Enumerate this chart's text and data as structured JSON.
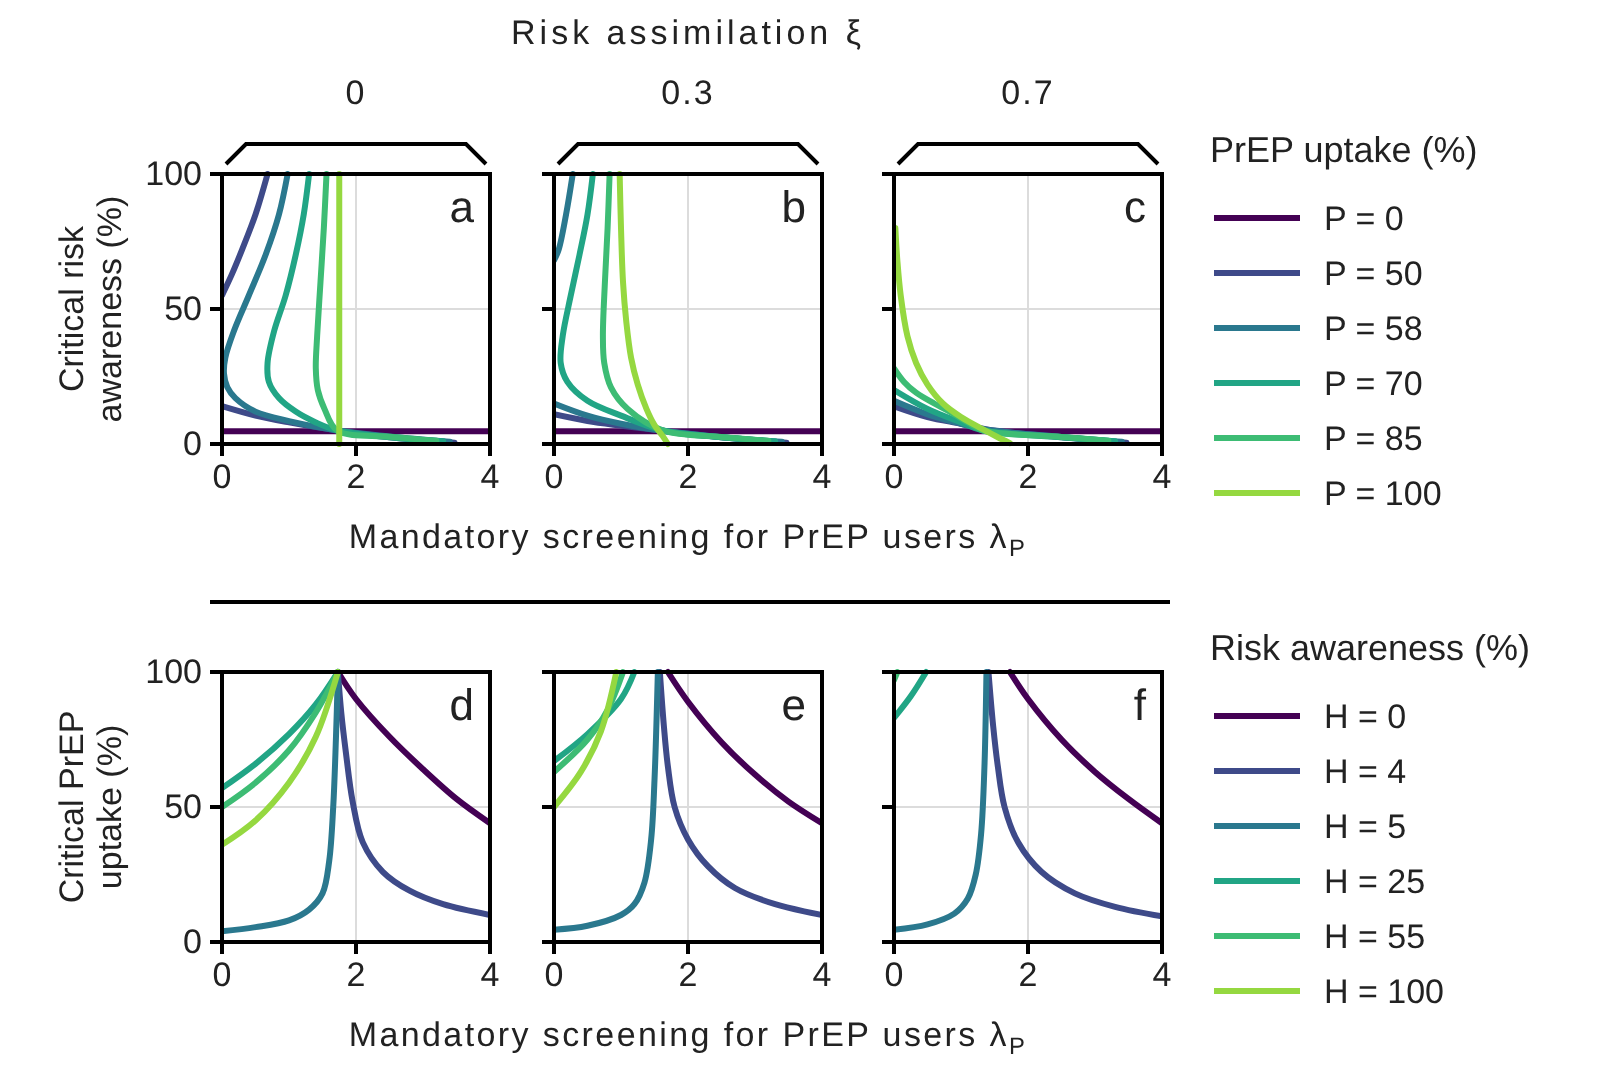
{
  "chart_data": [
    {
      "type": "line",
      "ylabel": "Critical risk awareness (%)",
      "subtitle": "0",
      "annotations": [
        "a"
      ],
      "xlim": [
        0,
        4
      ],
      "ylim": [
        0,
        100
      ],
      "xticks": [
        0,
        2,
        4
      ],
      "yticks": [
        0,
        50,
        100
      ],
      "grid": true,
      "series": [
        {
          "color": "#440154",
          "x": [
            0,
            4
          ],
          "values": [
            4.7,
            4.7
          ]
        },
        {
          "color": "#3e4a89",
          "x": [
            0.68,
            0.5,
            0.3,
            0.15,
            0,
            null,
            0,
            0.5,
            1,
            1.72,
            2.5,
            3.47
          ],
          "values": [
            100,
            85,
            72,
            63,
            55,
            null,
            14,
            10.5,
            8,
            5,
            2.5,
            0.5
          ]
        },
        {
          "color": "#2a788e",
          "x": [
            0.98,
            0.85,
            0.65,
            0.4,
            0.18,
            0.05,
            0.03,
            0.08,
            0.2,
            0.5,
            1,
            1.72,
            2.5,
            3.4
          ],
          "values": [
            100,
            85,
            70,
            55,
            42,
            32,
            26,
            21,
            17,
            12,
            8.5,
            5,
            2.8,
            0.8
          ]
        },
        {
          "color": "#21a585",
          "x": [
            1.3,
            1.22,
            1.1,
            0.95,
            0.78,
            0.68,
            0.7,
            0.85,
            1.1,
            1.4,
            1.72,
            2.5,
            3.3
          ],
          "values": [
            100,
            85,
            70,
            55,
            42,
            30,
            23,
            17,
            12,
            8,
            5,
            2.5,
            1
          ]
        },
        {
          "color": "#3dbc74",
          "x": [
            1.56,
            1.52,
            1.47,
            1.42,
            1.4,
            1.43,
            1.53,
            1.72,
            2.5,
            3.2
          ],
          "values": [
            100,
            80,
            60,
            40,
            28,
            20,
            13,
            5,
            2.7,
            1.2
          ]
        },
        {
          "color": "#95d840",
          "x": [
            1.75,
            1.75
          ],
          "values": [
            100,
            0
          ]
        }
      ]
    },
    {
      "type": "line",
      "title": "Risk assimilation ξ",
      "subtitle": "0.3",
      "xlabel": "Mandatory screening for PrEP users λ$_{P}$",
      "annotations": [
        "b"
      ],
      "xlim": [
        0,
        4
      ],
      "ylim": [
        0,
        100
      ],
      "xticks": [
        0,
        2,
        4
      ],
      "yticks": [
        0,
        50,
        100
      ],
      "grid": true,
      "tick_labels": "x",
      "series": [
        {
          "color": "#440154",
          "x": [
            0,
            4
          ],
          "values": [
            4.7,
            4.7
          ]
        },
        {
          "color": "#3e4a89",
          "x": [
            0,
            0.5,
            1,
            1.6,
            2.5,
            3.47
          ],
          "values": [
            11,
            8.5,
            6.8,
            5,
            2.5,
            0.5
          ]
        },
        {
          "color": "#2a788e",
          "x": [
            0.28,
            0.18,
            0.07,
            0,
            null,
            0,
            0.5,
            1,
            1.6,
            2.5,
            3.4
          ],
          "values": [
            100,
            85,
            72,
            68,
            null,
            15,
            10.5,
            7.5,
            5,
            2.5,
            0.8
          ]
        },
        {
          "color": "#21a585",
          "x": [
            0.58,
            0.5,
            0.38,
            0.25,
            0.13,
            0.1,
            0.2,
            0.5,
            1,
            1.63,
            2.5,
            3.3
          ],
          "values": [
            100,
            85,
            70,
            55,
            40,
            30,
            23,
            16,
            10.5,
            5,
            2.5,
            1
          ]
        },
        {
          "color": "#3dbc74",
          "x": [
            0.83,
            0.8,
            0.76,
            0.73,
            0.75,
            0.85,
            1.1,
            1.63,
            2.5,
            3.2
          ],
          "values": [
            100,
            80,
            60,
            40,
            30,
            21,
            13,
            5,
            2.6,
            1.2
          ]
        },
        {
          "color": "#95d840",
          "x": [
            0.98,
            1,
            1.03,
            1.08,
            1.15,
            1.25,
            1.38,
            1.5,
            1.62,
            1.7
          ],
          "values": [
            100,
            80,
            60,
            45,
            32,
            22,
            13,
            7,
            3,
            0
          ]
        }
      ]
    },
    {
      "type": "line",
      "subtitle": "0.7",
      "legend_title": "PrEP uptake (%)",
      "legend": "right",
      "annotations": [
        "c"
      ],
      "xlim": [
        0,
        4
      ],
      "ylim": [
        0,
        100
      ],
      "xticks": [
        0,
        2,
        4
      ],
      "yticks": [
        0,
        50,
        100
      ],
      "grid": true,
      "tick_labels": "x",
      "series": [
        {
          "name": "P = 0",
          "color": "#440154",
          "x": [
            0,
            4
          ],
          "values": [
            4.7,
            4.7
          ]
        },
        {
          "name": "P = 50",
          "color": "#3e4a89",
          "x": [
            0,
            0.5,
            1,
            1.5,
            2.5,
            3.47
          ],
          "values": [
            14,
            10,
            7.5,
            5,
            2.5,
            0.5
          ]
        },
        {
          "name": "P = 58",
          "color": "#2a788e",
          "x": [
            0,
            0.5,
            1,
            1.33,
            2.5,
            3.4
          ],
          "values": [
            16,
            11,
            7.5,
            5.5,
            2.6,
            0.8
          ]
        },
        {
          "name": "P = 70",
          "color": "#21a585",
          "x": [
            0,
            0.5,
            1,
            1.33,
            2.5,
            3.3
          ],
          "values": [
            20,
            13,
            8,
            5,
            2.5,
            1
          ]
        },
        {
          "name": "P = 85",
          "color": "#3dbc74",
          "x": [
            0,
            0.15,
            0.33,
            0.6,
            0.83,
            1.1,
            1.33,
            2.5,
            3.2
          ],
          "values": [
            28,
            23,
            19,
            15,
            12,
            8,
            5,
            2.6,
            1.2
          ]
        },
        {
          "name": "P = 100",
          "color": "#95d840",
          "x": [
            0.02,
            0.05,
            0.1,
            0.2,
            0.33,
            0.5,
            0.73,
            1,
            1.33,
            1.55,
            1.73
          ],
          "values": [
            80,
            68,
            55,
            40,
            30,
            22,
            15,
            10,
            5.4,
            2.5,
            0.3
          ]
        }
      ]
    },
    {
      "type": "line",
      "ylabel": "Critical PrEP uptake (%)",
      "annotations": [
        "d"
      ],
      "xlim": [
        0,
        4
      ],
      "ylim": [
        0,
        100
      ],
      "xticks": [
        0,
        2,
        4
      ],
      "yticks": [
        0,
        50,
        100
      ],
      "grid": true,
      "series": [
        {
          "color": "#440154",
          "x": [
            1.73,
            2,
            2.5,
            3,
            3.5,
            4
          ],
          "values": [
            100,
            90,
            76,
            64,
            53,
            44
          ]
        },
        {
          "color": "#3e4a89",
          "x": [
            1.73,
            1.78,
            1.85,
            1.95,
            2.1,
            2.4,
            2.8,
            3.3,
            4
          ],
          "values": [
            100,
            85,
            70,
            52,
            37,
            26,
            19,
            14,
            10
          ]
        },
        {
          "color": "#2a788e",
          "x": [
            0,
            0.5,
            1,
            1.3,
            1.5,
            1.6,
            1.66,
            1.7,
            1.73
          ],
          "values": [
            4,
            5.5,
            8,
            12,
            18,
            30,
            50,
            75,
            100
          ]
        },
        {
          "color": "#21a585",
          "x": [
            0,
            0.5,
            1,
            1.4,
            1.73
          ],
          "values": [
            57,
            66,
            77,
            88,
            100
          ]
        },
        {
          "color": "#3dbc74",
          "x": [
            0,
            0.5,
            1,
            1.4,
            1.73
          ],
          "values": [
            50,
            59,
            71,
            85,
            100
          ]
        },
        {
          "color": "#95d840",
          "x": [
            0,
            0.5,
            1,
            1.4,
            1.73
          ],
          "values": [
            36,
            45,
            59,
            76,
            100
          ]
        }
      ]
    },
    {
      "type": "line",
      "xlabel": "Mandatory screening for PrEP users λ$_{P}$",
      "annotations": [
        "e"
      ],
      "xlim": [
        0,
        4
      ],
      "ylim": [
        0,
        100
      ],
      "xticks": [
        0,
        2,
        4
      ],
      "yticks": [
        0,
        50,
        100
      ],
      "grid": true,
      "tick_labels": "x",
      "series": [
        {
          "color": "#440154",
          "x": [
            1.7,
            2,
            2.5,
            3,
            3.5,
            4
          ],
          "values": [
            100,
            89,
            74,
            62,
            52,
            44
          ]
        },
        {
          "color": "#3e4a89",
          "x": [
            1.58,
            1.64,
            1.7,
            1.8,
            2,
            2.3,
            2.7,
            3.3,
            4
          ],
          "values": [
            100,
            80,
            65,
            50,
            38,
            28,
            20,
            14,
            10
          ]
        },
        {
          "color": "#2a788e",
          "x": [
            0,
            0.5,
            1,
            1.2,
            1.35,
            1.45,
            1.5,
            1.55
          ],
          "values": [
            4.5,
            6,
            10,
            14,
            22,
            38,
            60,
            100
          ]
        },
        {
          "color": "#21a585",
          "x": [
            0,
            0.5,
            1,
            1.2
          ],
          "values": [
            67,
            77,
            90,
            100
          ]
        },
        {
          "color": "#3dbc74",
          "x": [
            0,
            0.5,
            0.8,
            1.03
          ],
          "values": [
            63,
            75,
            86,
            100
          ]
        },
        {
          "color": "#95d840",
          "x": [
            0,
            0.4,
            0.7,
            0.93
          ],
          "values": [
            50,
            63,
            78,
            100
          ]
        }
      ]
    },
    {
      "type": "line",
      "legend_title": "Risk awareness (%)",
      "legend": "right",
      "annotations": [
        "f"
      ],
      "xlim": [
        0,
        4
      ],
      "ylim": [
        0,
        100
      ],
      "xticks": [
        0,
        2,
        4
      ],
      "yticks": [
        0,
        50,
        100
      ],
      "grid": true,
      "tick_labels": "x",
      "series": [
        {
          "name": "H = 0",
          "color": "#440154",
          "x": [
            1.73,
            2,
            2.5,
            3,
            3.5,
            4
          ],
          "values": [
            100,
            90,
            75,
            63,
            53,
            44
          ]
        },
        {
          "name": "H = 4",
          "color": "#3e4a89",
          "x": [
            1.41,
            1.48,
            1.55,
            1.65,
            1.85,
            2.2,
            2.7,
            3.3,
            4
          ],
          "values": [
            100,
            80,
            65,
            50,
            37,
            26,
            18,
            13,
            9.5
          ]
        },
        {
          "name": "H = 5",
          "color": "#2a788e",
          "x": [
            0,
            0.5,
            0.9,
            1.1,
            1.22,
            1.3,
            1.35,
            1.38
          ],
          "values": [
            4.5,
            6.5,
            10.5,
            16,
            25,
            40,
            65,
            100
          ]
        },
        {
          "name": "H = 25",
          "color": "#21a585",
          "x": [
            0,
            0.25,
            0.48
          ],
          "values": [
            83,
            91,
            100
          ]
        },
        {
          "name": "H = 55",
          "color": "#3dbc74",
          "x": [
            0,
            0.05
          ],
          "values": [
            97,
            100
          ]
        },
        {
          "name": "H = 100",
          "color": "#95d840"
        }
      ]
    }
  ]
}
